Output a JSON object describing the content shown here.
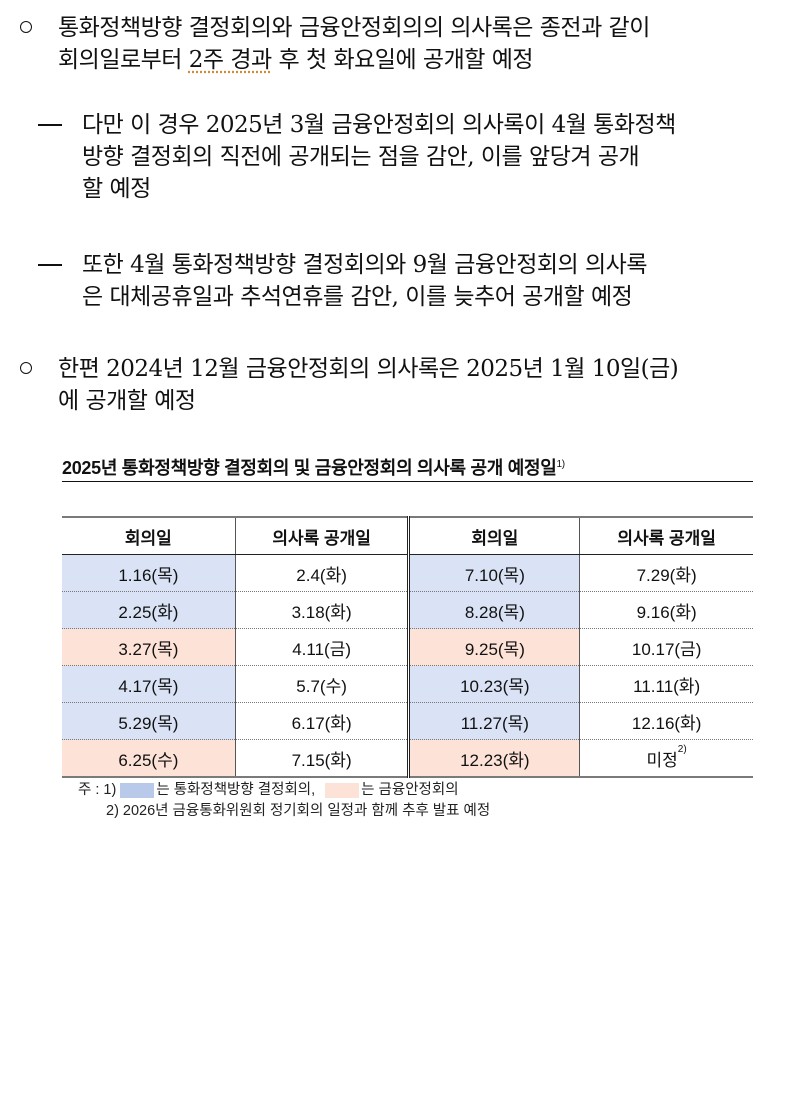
{
  "paragraphs": [
    {
      "marker": "circle",
      "lines": [
        "통화정책방향 결정회의와 금융안정회의의 의사록은 종전과 같이",
        "회의일로부터 2주 경과 후 첫 화요일에 공개할 예정"
      ]
    },
    {
      "marker": "dash",
      "lines": [
        "다만 이 경우 2025년 3월 금융안정회의 의사록이 4월 통화정책",
        "방향 결정회의 직전에 공개되는 점을 감안, 이를 앞당겨 공개",
        "할 예정"
      ]
    },
    {
      "marker": "dash",
      "lines": [
        "또한 4월 통화정책방향 결정회의와 9월 금융안정회의 의사록",
        "은 대체공휴일과 추석연휴를 감안, 이를 늦추어 공개할 예정"
      ]
    },
    {
      "marker": "circle",
      "lines": [
        "한편 2024년 12월 금융안정회의 의사록은 2025년 1월 10일(금)",
        "에 공개할 예정"
      ]
    }
  ],
  "p1_line2": {
    "before": "회의일로부터 ",
    "squiggle": "2주 경과",
    "after": " 후 첫 화요일에 공개할 예정"
  },
  "table": {
    "title": "2025년 통화정책방향 결정회의 및 금융안정회의 의사록 공개 예정일",
    "title_footnote": "1)",
    "headers": [
      "회의일",
      "의사록 공개일",
      "회의일",
      "의사록 공개일"
    ],
    "rows": [
      {
        "left_meeting": "1.16(목)",
        "left_type": "mpc",
        "left_release": "2.4(화)",
        "right_meeting": "7.10(목)",
        "right_type": "mpc",
        "right_release": "7.29(화)"
      },
      {
        "left_meeting": "2.25(화)",
        "left_type": "mpc",
        "left_release": "3.18(화)",
        "right_meeting": "8.28(목)",
        "right_type": "mpc",
        "right_release": "9.16(화)"
      },
      {
        "left_meeting": "3.27(목)",
        "left_type": "fsc",
        "left_release": "4.11(금)",
        "right_meeting": "9.25(목)",
        "right_type": "fsc",
        "right_release": "10.17(금)"
      },
      {
        "left_meeting": "4.17(목)",
        "left_type": "mpc",
        "left_release": "5.7(수)",
        "right_meeting": "10.23(목)",
        "right_type": "mpc",
        "right_release": "11.11(화)"
      },
      {
        "left_meeting": "5.29(목)",
        "left_type": "mpc",
        "left_release": "6.17(화)",
        "right_meeting": "11.27(목)",
        "right_type": "mpc",
        "right_release": "12.16(화)"
      },
      {
        "left_meeting": "6.25(수)",
        "left_type": "fsc",
        "left_release": "7.15(화)",
        "right_meeting": "12.23(화)",
        "right_type": "fsc",
        "right_release": "미정",
        "right_release_footnote": "2)"
      }
    ]
  },
  "notes": {
    "prefix": "주 : 1)",
    "mpc_label": "는 통화정책방향 결정회의,",
    "fsc_label": "는 금융안정회의",
    "note2": "2) 2026년 금융통화위원회 정기회의 일정과 함께 추후 발표 예정"
  },
  "colors": {
    "mpc_cell": "#dae3f5",
    "fsc_cell": "#fde3d7",
    "mpc_swatch": "#b8c9ea",
    "fsc_swatch": "#fde3d7"
  }
}
